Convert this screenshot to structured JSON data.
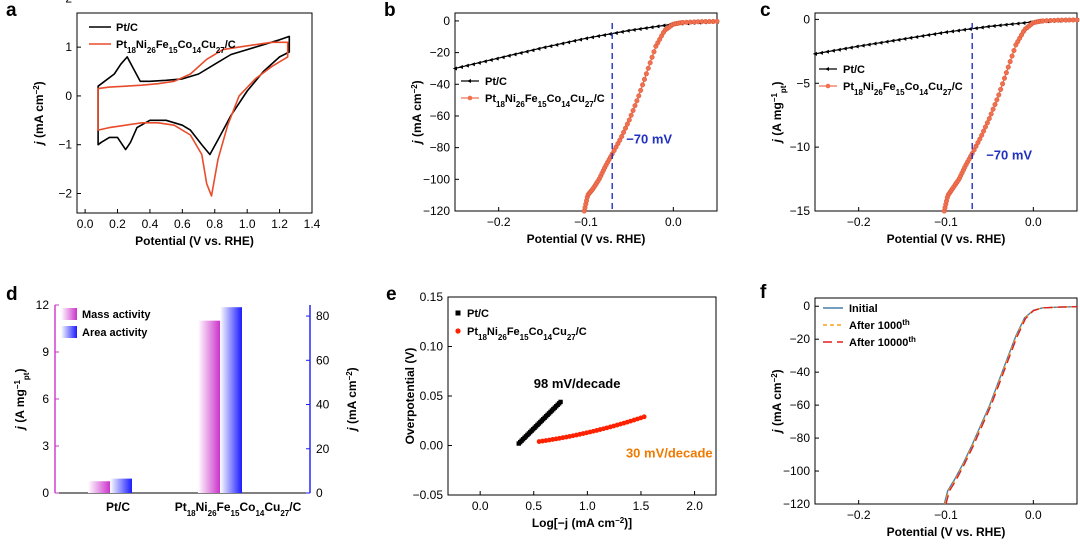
{
  "chart_data": [
    {
      "panel": "a",
      "type": "line",
      "xlabel": "Potential (V vs. RHE)",
      "ylabel": "j (mA cm−2)",
      "xlim": [
        -0.05,
        1.4
      ],
      "ylim": [
        -2.4,
        1.7
      ],
      "xticks": [
        "0.0",
        "0.2",
        "0.4",
        "0.6",
        "0.8",
        "1.0",
        "1.2",
        "1.4"
      ],
      "yticks": [
        "−2",
        "−1",
        "0",
        "1",
        "2"
      ],
      "legend_position": "top-left",
      "series": [
        {
          "name": "Pt/C",
          "color": "#000000",
          "x": [
            0.08,
            0.12,
            0.18,
            0.22,
            0.26,
            0.3,
            0.34,
            0.4,
            0.5,
            0.6,
            0.7,
            0.8,
            0.9,
            1.0,
            1.1,
            1.2,
            1.26,
            1.26,
            1.2,
            1.1,
            1.0,
            0.9,
            0.82,
            0.77,
            0.72,
            0.65,
            0.6,
            0.5,
            0.4,
            0.32,
            0.28,
            0.25,
            0.2,
            0.15,
            0.1,
            0.08
          ],
          "y": [
            0.2,
            0.3,
            0.45,
            0.65,
            0.8,
            0.55,
            0.3,
            0.3,
            0.32,
            0.35,
            0.45,
            0.65,
            0.85,
            0.95,
            1.05,
            1.15,
            1.22,
            0.9,
            0.8,
            0.5,
            0.1,
            -0.4,
            -0.9,
            -1.2,
            -1.0,
            -0.7,
            -0.6,
            -0.5,
            -0.5,
            -0.65,
            -0.95,
            -1.1,
            -0.85,
            -0.85,
            -0.95,
            -1.0
          ]
        },
        {
          "name": "Pt18Ni26Fe15Co14Cu27/C",
          "color": "#e84c2b",
          "x": [
            0.08,
            0.15,
            0.25,
            0.35,
            0.45,
            0.55,
            0.65,
            0.75,
            0.85,
            0.95,
            1.05,
            1.15,
            1.25,
            1.25,
            1.15,
            1.05,
            0.95,
            0.88,
            0.82,
            0.78,
            0.75,
            0.72,
            0.65,
            0.55,
            0.45,
            0.35,
            0.25,
            0.15,
            0.08
          ],
          "y": [
            0.15,
            0.18,
            0.2,
            0.22,
            0.25,
            0.3,
            0.45,
            0.75,
            0.95,
            1.0,
            1.05,
            1.1,
            1.1,
            0.8,
            0.6,
            0.35,
            0.0,
            -0.6,
            -1.3,
            -2.05,
            -1.8,
            -1.2,
            -0.8,
            -0.6,
            -0.55,
            -0.55,
            -0.6,
            -0.65,
            -0.7
          ]
        }
      ]
    },
    {
      "panel": "b",
      "type": "line",
      "xlabel": "Potential (V vs. RHE)",
      "ylabel": "j (mA cm−2)",
      "xlim": [
        -0.25,
        0.05
      ],
      "ylim": [
        -120,
        5
      ],
      "xticks": [
        "−0.2",
        "−0.1",
        "0.0"
      ],
      "yticks": [
        "0",
        "−20",
        "−40",
        "−60",
        "−80",
        "−100",
        "−120"
      ],
      "annotation": "−70 mV",
      "annotation_x": -0.07,
      "legend_position": "center-left",
      "series": [
        {
          "name": "Pt/C",
          "color": "#000000",
          "x": [
            -0.25,
            -0.2,
            -0.15,
            -0.1,
            -0.05,
            0.0,
            0.05
          ],
          "y": [
            -30,
            -23.5,
            -17,
            -11,
            -6,
            -2,
            -0.5
          ]
        },
        {
          "name": "Pt18Ni26Fe15Co14Cu27/C",
          "color": "#f07050",
          "x": [
            -0.102,
            -0.098,
            -0.092,
            -0.085,
            -0.078,
            -0.07,
            -0.06,
            -0.05,
            -0.04,
            -0.03,
            -0.02,
            -0.01,
            0.0,
            0.01,
            0.03,
            0.05
          ],
          "y": [
            -120,
            -110,
            -106,
            -100,
            -92,
            -84,
            -74,
            -62,
            -48,
            -32,
            -16,
            -6,
            -2,
            -1,
            -0.5,
            -0.3
          ]
        }
      ]
    },
    {
      "panel": "c",
      "type": "line",
      "xlabel": "Potential (V vs. RHE)",
      "ylabel": "j (A mg−1pt)",
      "xlim": [
        -0.25,
        0.05
      ],
      "ylim": [
        -15,
        0.5
      ],
      "xticks": [
        "−0.2",
        "−0.1",
        "0.0"
      ],
      "yticks": [
        "0",
        "−5",
        "−10",
        "−15"
      ],
      "annotation": "−70 mV",
      "annotation_x": -0.07,
      "legend_position": "top-left",
      "series": [
        {
          "name": "Pt/C",
          "color": "#000000",
          "x": [
            -0.25,
            -0.2,
            -0.15,
            -0.1,
            -0.05,
            0.0,
            0.05
          ],
          "y": [
            -2.7,
            -2.1,
            -1.55,
            -1.0,
            -0.55,
            -0.2,
            -0.05
          ]
        },
        {
          "name": "Pt18Ni26Fe15Co14Cu27/C",
          "color": "#f07050",
          "x": [
            -0.102,
            -0.098,
            -0.092,
            -0.085,
            -0.078,
            -0.07,
            -0.06,
            -0.05,
            -0.04,
            -0.03,
            -0.02,
            -0.01,
            0.0,
            0.01,
            0.03,
            0.05
          ],
          "y": [
            -15,
            -13.8,
            -13.2,
            -12.5,
            -11.5,
            -10.5,
            -9.2,
            -7.7,
            -6,
            -4,
            -2,
            -0.8,
            -0.25,
            -0.12,
            -0.06,
            -0.04
          ]
        }
      ]
    },
    {
      "panel": "d",
      "type": "bar",
      "categories": [
        "Pt/C",
        "Pt18Ni26Fe15Co14Cu27/C"
      ],
      "ylabel": "j (A mg−1pt)",
      "ylabel_right": "j (mA cm−2)",
      "ylim": [
        0,
        12
      ],
      "ylim_right": [
        0,
        85
      ],
      "yticks": [
        "0",
        "3",
        "6",
        "9",
        "12"
      ],
      "yticks_right": [
        "0",
        "20",
        "40",
        "60",
        "80"
      ],
      "legend_position": "top-left",
      "series": [
        {
          "name": "Mass activity",
          "color": "#cc33cc",
          "axis": "left",
          "values": [
            0.75,
            11.0
          ]
        },
        {
          "name": "Area activity",
          "color": "#1a1aff",
          "axis": "right",
          "values": [
            6.5,
            84
          ]
        }
      ]
    },
    {
      "panel": "e",
      "type": "scatter",
      "xlabel": "Log[−j (mA cm−2)]",
      "ylabel": "Overpotential (V)",
      "xlim": [
        -0.3,
        2.2
      ],
      "ylim": [
        -0.05,
        0.15
      ],
      "xticks": [
        "0.0",
        "0.5",
        "1.0",
        "1.5",
        "2.0"
      ],
      "yticks": [
        "−0.05",
        "0.00",
        "0.05",
        "0.10",
        "0.15"
      ],
      "legend_position": "top-left",
      "series": [
        {
          "name": "Pt/C",
          "color": "#000000",
          "annotation": "98 mV/decade",
          "x0": 0.36,
          "x1": 0.75,
          "y0": 0.002,
          "y1": 0.044,
          "n": 30
        },
        {
          "name": "Pt18Ni26Fe15Co14Cu27/C",
          "color": "#ff2000",
          "annotation": "30 mV/decade",
          "annotation_color": "#f07a00",
          "x0": 0.55,
          "x1": 1.53,
          "y0": 0.004,
          "y1": 0.029,
          "n": 32
        }
      ]
    },
    {
      "panel": "f",
      "type": "line",
      "xlabel": "Potential (V vs. RHE)",
      "ylabel": "j (mA cm−2)",
      "xlim": [
        -0.25,
        0.05
      ],
      "ylim": [
        -120,
        5
      ],
      "xticks": [
        "−0.2",
        "−0.1",
        "0.0"
      ],
      "yticks": [
        "0",
        "−20",
        "−40",
        "−60",
        "−80",
        "−100",
        "−120"
      ],
      "legend_position": "top-left",
      "series": [
        {
          "name": "Initial",
          "color": "#4a7fa8",
          "dash": "",
          "x": [
            -0.102,
            -0.098,
            -0.09,
            -0.08,
            -0.07,
            -0.06,
            -0.05,
            -0.04,
            -0.03,
            -0.02,
            -0.01,
            0.0,
            0.01,
            0.03,
            0.05
          ],
          "y": [
            -120,
            -112,
            -105,
            -95,
            -84,
            -72,
            -60,
            -46,
            -32,
            -18,
            -7,
            -2.5,
            -1,
            -0.5,
            -0.3
          ]
        },
        {
          "name": "After 1000th",
          "color": "#f5a020",
          "dash": "4,3",
          "x": [
            -0.101,
            -0.097,
            -0.09,
            -0.08,
            -0.07,
            -0.06,
            -0.05,
            -0.04,
            -0.03,
            -0.02,
            -0.01,
            0.0,
            0.01,
            0.03,
            0.05
          ],
          "y": [
            -120,
            -112,
            -106,
            -96,
            -85,
            -73,
            -61,
            -47,
            -33,
            -19,
            -7.5,
            -2.6,
            -1,
            -0.5,
            -0.3
          ]
        },
        {
          "name": "After 10000th",
          "color": "#e02020",
          "dash": "9,5",
          "x": [
            -0.1,
            -0.096,
            -0.089,
            -0.079,
            -0.069,
            -0.059,
            -0.049,
            -0.039,
            -0.029,
            -0.019,
            -0.009,
            0.0,
            0.01,
            0.03,
            0.05
          ],
          "y": [
            -120,
            -112,
            -106,
            -96,
            -85,
            -73,
            -61,
            -47,
            -33,
            -19,
            -7.5,
            -2.7,
            -1,
            -0.5,
            -0.3
          ]
        }
      ]
    }
  ]
}
